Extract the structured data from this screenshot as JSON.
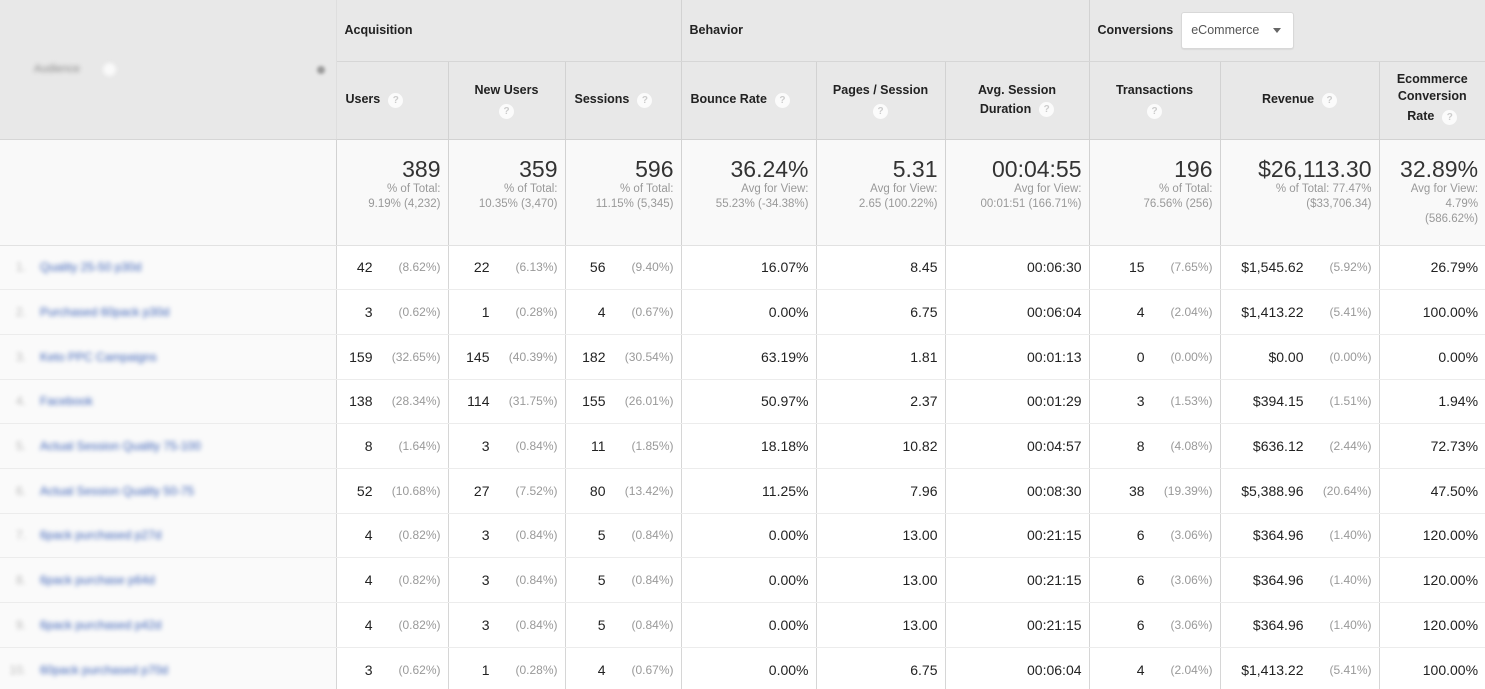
{
  "header": {
    "dimension": {
      "label": "Audience",
      "sort_icon": "sort-icon"
    },
    "groups": {
      "acquisition": "Acquisition",
      "behavior": "Behavior",
      "conversions": "Conversions",
      "conversions_select": "eCommerce"
    },
    "metrics": {
      "users": "Users",
      "new_users": "New Users",
      "sessions": "Sessions",
      "bounce_rate": "Bounce Rate",
      "pages_session": "Pages / Session",
      "avg_duration_1": "Avg. Session",
      "avg_duration_2": "Duration",
      "transactions": "Transactions",
      "revenue": "Revenue",
      "ecr_1": "Ecommerce",
      "ecr_2": "Conversion",
      "ecr_3": "Rate"
    },
    "help_glyph": "?"
  },
  "totals": {
    "users": {
      "value": "389",
      "line1": "% of Total:",
      "line2": "9.19% (4,232)"
    },
    "new_users": {
      "value": "359",
      "line1": "% of Total:",
      "line2": "10.35% (3,470)"
    },
    "sessions": {
      "value": "596",
      "line1": "% of Total:",
      "line2": "11.15% (5,345)"
    },
    "bounce_rate": {
      "value": "36.24%",
      "line1": "Avg for View:",
      "line2": "55.23% (-34.38%)"
    },
    "pages_session": {
      "value": "5.31",
      "line1": "Avg for View:",
      "line2": "2.65 (100.22%)"
    },
    "avg_duration": {
      "value": "00:04:55",
      "line1": "Avg for View:",
      "line2": "00:01:51 (166.71%)"
    },
    "transactions": {
      "value": "196",
      "line1": "% of Total:",
      "line2": "76.56% (256)"
    },
    "revenue": {
      "value": "$26,113.30",
      "line1": "% of Total: 77.47%",
      "line2": "($33,706.34)"
    },
    "ecr": {
      "value": "32.89%",
      "line1": "Avg for View:",
      "line2": "4.79%",
      "line3": "(586.62%)"
    }
  },
  "rows": [
    {
      "num": "1.",
      "name": "Quality 25-50 p30d",
      "users": "42",
      "users_pct": "(8.62%)",
      "new_users": "22",
      "new_users_pct": "(6.13%)",
      "sessions": "56",
      "sessions_pct": "(9.40%)",
      "bounce_rate": "16.07%",
      "pages_session": "8.45",
      "avg_duration": "00:06:30",
      "transactions": "15",
      "transactions_pct": "(7.65%)",
      "revenue": "$1,545.62",
      "revenue_pct": "(5.92%)",
      "ecr": "26.79%"
    },
    {
      "num": "2.",
      "name": "Purchased 60pack p30d",
      "users": "3",
      "users_pct": "(0.62%)",
      "new_users": "1",
      "new_users_pct": "(0.28%)",
      "sessions": "4",
      "sessions_pct": "(0.67%)",
      "bounce_rate": "0.00%",
      "pages_session": "6.75",
      "avg_duration": "00:06:04",
      "transactions": "4",
      "transactions_pct": "(2.04%)",
      "revenue": "$1,413.22",
      "revenue_pct": "(5.41%)",
      "ecr": "100.00%"
    },
    {
      "num": "3.",
      "name": "Keto PPC Campaigns",
      "users": "159",
      "users_pct": "(32.65%)",
      "new_users": "145",
      "new_users_pct": "(40.39%)",
      "sessions": "182",
      "sessions_pct": "(30.54%)",
      "bounce_rate": "63.19%",
      "pages_session": "1.81",
      "avg_duration": "00:01:13",
      "transactions": "0",
      "transactions_pct": "(0.00%)",
      "revenue": "$0.00",
      "revenue_pct": "(0.00%)",
      "ecr": "0.00%"
    },
    {
      "num": "4.",
      "name": "Facebook",
      "users": "138",
      "users_pct": "(28.34%)",
      "new_users": "114",
      "new_users_pct": "(31.75%)",
      "sessions": "155",
      "sessions_pct": "(26.01%)",
      "bounce_rate": "50.97%",
      "pages_session": "2.37",
      "avg_duration": "00:01:29",
      "transactions": "3",
      "transactions_pct": "(1.53%)",
      "revenue": "$394.15",
      "revenue_pct": "(1.51%)",
      "ecr": "1.94%"
    },
    {
      "num": "5.",
      "name": "Actual Session Quality 75-100",
      "users": "8",
      "users_pct": "(1.64%)",
      "new_users": "3",
      "new_users_pct": "(0.84%)",
      "sessions": "11",
      "sessions_pct": "(1.85%)",
      "bounce_rate": "18.18%",
      "pages_session": "10.82",
      "avg_duration": "00:04:57",
      "transactions": "8",
      "transactions_pct": "(4.08%)",
      "revenue": "$636.12",
      "revenue_pct": "(2.44%)",
      "ecr": "72.73%"
    },
    {
      "num": "6.",
      "name": "Actual Session Quality 50-75",
      "users": "52",
      "users_pct": "(10.68%)",
      "new_users": "27",
      "new_users_pct": "(7.52%)",
      "sessions": "80",
      "sessions_pct": "(13.42%)",
      "bounce_rate": "11.25%",
      "pages_session": "7.96",
      "avg_duration": "00:08:30",
      "transactions": "38",
      "transactions_pct": "(19.39%)",
      "revenue": "$5,388.96",
      "revenue_pct": "(20.64%)",
      "ecr": "47.50%"
    },
    {
      "num": "7.",
      "name": "6pack purchased p27d",
      "users": "4",
      "users_pct": "(0.82%)",
      "new_users": "3",
      "new_users_pct": "(0.84%)",
      "sessions": "5",
      "sessions_pct": "(0.84%)",
      "bounce_rate": "0.00%",
      "pages_session": "13.00",
      "avg_duration": "00:21:15",
      "transactions": "6",
      "transactions_pct": "(3.06%)",
      "revenue": "$364.96",
      "revenue_pct": "(1.40%)",
      "ecr": "120.00%"
    },
    {
      "num": "8.",
      "name": "6pack purchase p64d",
      "users": "4",
      "users_pct": "(0.82%)",
      "new_users": "3",
      "new_users_pct": "(0.84%)",
      "sessions": "5",
      "sessions_pct": "(0.84%)",
      "bounce_rate": "0.00%",
      "pages_session": "13.00",
      "avg_duration": "00:21:15",
      "transactions": "6",
      "transactions_pct": "(3.06%)",
      "revenue": "$364.96",
      "revenue_pct": "(1.40%)",
      "ecr": "120.00%"
    },
    {
      "num": "9.",
      "name": "6pack purchased p42d",
      "users": "4",
      "users_pct": "(0.82%)",
      "new_users": "3",
      "new_users_pct": "(0.84%)",
      "sessions": "5",
      "sessions_pct": "(0.84%)",
      "bounce_rate": "0.00%",
      "pages_session": "13.00",
      "avg_duration": "00:21:15",
      "transactions": "6",
      "transactions_pct": "(3.06%)",
      "revenue": "$364.96",
      "revenue_pct": "(1.40%)",
      "ecr": "120.00%"
    },
    {
      "num": "10.",
      "name": "60pack purchased p70d",
      "users": "3",
      "users_pct": "(0.62%)",
      "new_users": "1",
      "new_users_pct": "(0.28%)",
      "sessions": "4",
      "sessions_pct": "(0.67%)",
      "bounce_rate": "0.00%",
      "pages_session": "6.75",
      "avg_duration": "00:06:04",
      "transactions": "4",
      "transactions_pct": "(2.04%)",
      "revenue": "$1,413.22",
      "revenue_pct": "(5.41%)",
      "ecr": "100.00%"
    }
  ]
}
